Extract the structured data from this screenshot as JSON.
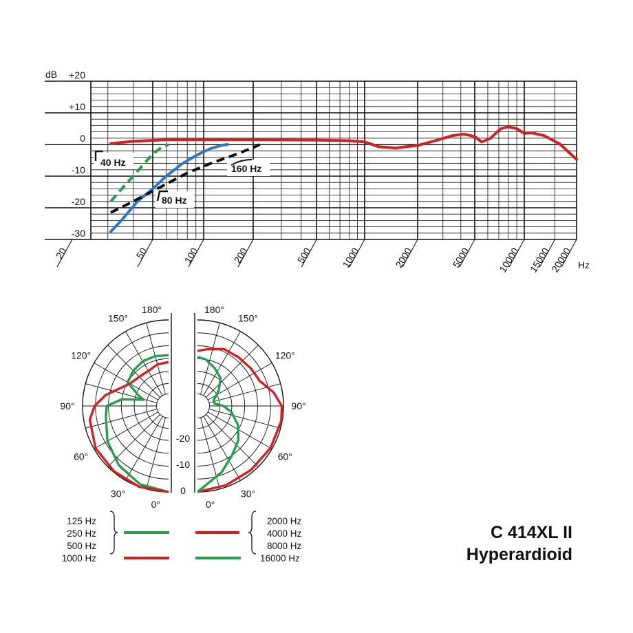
{
  "chart_data": [
    {
      "type": "line",
      "y_axis": {
        "label": "dB",
        "ticks": [
          "+20",
          "+10",
          "0",
          "-10",
          "-20",
          "-30"
        ],
        "range": [
          -30,
          20
        ]
      },
      "x_axis": {
        "unit": "Hz",
        "scale": "log",
        "ticks": [
          "20",
          "50",
          "100",
          "200",
          "500",
          "1000",
          "2000",
          "5000",
          "10000",
          "15000",
          "20000"
        ],
        "range": [
          20,
          20000
        ]
      },
      "grid": true,
      "series": [
        {
          "color": "#d42020",
          "style": "solid",
          "points": [
            [
              31,
              0.3
            ],
            [
              40,
              1
            ],
            [
              60,
              1.5
            ],
            [
              100,
              1.5
            ],
            [
              200,
              1.5
            ],
            [
              500,
              1.4
            ],
            [
              800,
              1.2
            ],
            [
              1000,
              0.8
            ],
            [
              1200,
              -0.7
            ],
            [
              1500,
              -1.1
            ],
            [
              2000,
              -0.3
            ],
            [
              2700,
              1.3
            ],
            [
              3500,
              2.8
            ],
            [
              4200,
              3.3
            ],
            [
              5000,
              2.5
            ],
            [
              5500,
              0.8
            ],
            [
              6200,
              1.9
            ],
            [
              7200,
              5.0
            ],
            [
              8000,
              5.6
            ],
            [
              9000,
              5.0
            ],
            [
              10000,
              3.5
            ],
            [
              11000,
              3.7
            ],
            [
              13000,
              2.8
            ],
            [
              16000,
              0.2
            ],
            [
              20000,
              -4.7
            ]
          ]
        },
        {
          "label": "40 Hz",
          "color": "#23a04a",
          "style": "dashed",
          "points": [
            [
              31,
              -18
            ],
            [
              34,
              -15
            ],
            [
              40,
              -10
            ],
            [
              44,
              -7
            ],
            [
              50,
              -3
            ],
            [
              56,
              -1
            ],
            [
              62,
              0
            ]
          ]
        },
        {
          "label": "80 Hz",
          "color": "#2a78c8",
          "style": "solid",
          "points": [
            [
              31,
              -27.5
            ],
            [
              35,
              -24
            ],
            [
              42,
              -18
            ],
            [
              50,
              -14
            ],
            [
              60,
              -10
            ],
            [
              75,
              -6
            ],
            [
              90,
              -3.5
            ],
            [
              110,
              -1.3
            ],
            [
              130,
              -0.2
            ],
            [
              140,
              0
            ]
          ]
        },
        {
          "label": "160 Hz",
          "color": "#111111",
          "style": "dashed",
          "points": [
            [
              31,
              -21.5
            ],
            [
              40,
              -18
            ],
            [
              60,
              -12.5
            ],
            [
              80,
              -9
            ],
            [
              110,
              -6
            ],
            [
              150,
              -3.5
            ],
            [
              200,
              -1
            ],
            [
              220,
              0
            ]
          ]
        }
      ]
    },
    {
      "type": "polar",
      "pattern": "Hyperardioid",
      "angle_labels_left": [
        "180°",
        "150°",
        "120°",
        "90°",
        "60°",
        "30°",
        "0°"
      ],
      "angle_labels_right": [
        "180°",
        "150°",
        "120°",
        "90°",
        "60°",
        "30°",
        "0°"
      ],
      "radial_labels": [
        "-20",
        "-10",
        "0"
      ],
      "series": [
        {
          "side": "left",
          "color": "#23a04a",
          "legend_group": "low"
        },
        {
          "side": "left",
          "color": "#d42020",
          "legend_group": "1000"
        },
        {
          "side": "right",
          "color": "#d42020",
          "legend_group": "mid"
        },
        {
          "side": "right",
          "color": "#23a04a",
          "legend_group": "16000"
        }
      ]
    }
  ],
  "legend": {
    "left": {
      "group_labels": [
        "125 Hz",
        "250 Hz",
        "500 Hz"
      ],
      "single_label": "1000 Hz"
    },
    "right": {
      "group_labels": [
        "2000 Hz",
        "4000 Hz",
        "8000 Hz"
      ],
      "single_label": "16000 Hz"
    }
  },
  "product": {
    "model": "C 414XL II",
    "pattern": "Hyperardioid"
  }
}
